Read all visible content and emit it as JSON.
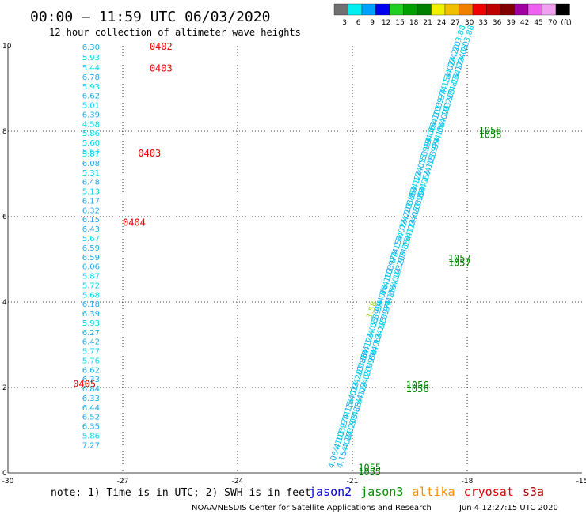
{
  "header": {
    "title": "00:00 – 11:59 UTC 06/03/2020",
    "subtitle": "12 hour collection of altimeter wave heights"
  },
  "legend": {
    "labels": [
      "3",
      "6",
      "9",
      "12",
      "15",
      "18",
      "21",
      "24",
      "27",
      "30",
      "33",
      "36",
      "39",
      "42",
      "45",
      "70",
      "(ft)"
    ],
    "colors": [
      "#707070",
      "#00f0f0",
      "#00a0ff",
      "#0000f0",
      "#20d020",
      "#00a000",
      "#008000",
      "#f0f000",
      "#f0c000",
      "#f08000",
      "#f00000",
      "#c00000",
      "#800000",
      "#a000a0",
      "#f060f0",
      "#f0a0f0",
      "#000000"
    ]
  },
  "footer": {
    "note": "note: 1) Time is in UTC; 2) SWH is in feet",
    "satellites": [
      {
        "name": "jason2",
        "color": "#0000cc"
      },
      {
        "name": "jason3",
        "color": "#009000"
      },
      {
        "name": "altika",
        "color": "#ff8c00"
      },
      {
        "name": "cryosat",
        "color": "#dd0000"
      },
      {
        "name": "s3a",
        "color": "#aa0000"
      }
    ],
    "credit": "NOAA/NESDIS Center for Satellite Applications and Research",
    "timestamp": "Jun  4 12:27:15 UTC 2020"
  },
  "chart_data": {
    "type": "scatter",
    "title": "",
    "xlabel": "",
    "ylabel": "",
    "xlim": [
      -30,
      -15
    ],
    "ylim": [
      0,
      10
    ],
    "x_ticks": [
      -30,
      -27,
      -24,
      -21,
      -18,
      -15
    ],
    "y_ticks": [
      0,
      2,
      4,
      6,
      8,
      10
    ],
    "grid": true,
    "grid_style": "dotted",
    "legend_position": "top-right",
    "left_track": {
      "x": -27.6,
      "heights": [
        {
          "y": 9.98,
          "v": "6.30"
        },
        {
          "y": 9.74,
          "v": "5.93"
        },
        {
          "y": 9.5,
          "v": "5.44"
        },
        {
          "y": 9.28,
          "v": "6.78"
        },
        {
          "y": 9.06,
          "v": "5.93"
        },
        {
          "y": 8.84,
          "v": "6.62"
        },
        {
          "y": 8.62,
          "v": "5.01"
        },
        {
          "y": 8.4,
          "v": "6.39"
        },
        {
          "y": 8.18,
          "v": "4.58"
        },
        {
          "y": 7.96,
          "v": "5.86"
        },
        {
          "y": 7.74,
          "v": "5.60"
        },
        {
          "y": 7.54,
          "v": "5.67"
        },
        {
          "y": 7.48,
          "v": "5.87"
        },
        {
          "y": 7.26,
          "v": "6.08"
        },
        {
          "y": 7.04,
          "v": "5.31"
        },
        {
          "y": 6.82,
          "v": "6.48"
        },
        {
          "y": 6.6,
          "v": "5.13"
        },
        {
          "y": 6.38,
          "v": "6.17"
        },
        {
          "y": 6.16,
          "v": "6.32"
        },
        {
          "y": 5.94,
          "v": "6.15"
        },
        {
          "y": 5.72,
          "v": "6.43"
        },
        {
          "y": 5.5,
          "v": "5.67"
        },
        {
          "y": 5.28,
          "v": "6.59"
        },
        {
          "y": 5.06,
          "v": "6.59"
        },
        {
          "y": 4.84,
          "v": "6.06"
        },
        {
          "y": 4.62,
          "v": "5.87"
        },
        {
          "y": 4.4,
          "v": "5.72"
        },
        {
          "y": 4.18,
          "v": "5.68"
        },
        {
          "y": 3.96,
          "v": "6.18"
        },
        {
          "y": 3.74,
          "v": "6.39"
        },
        {
          "y": 3.52,
          "v": "5.93"
        },
        {
          "y": 3.3,
          "v": "6.27"
        },
        {
          "y": 3.08,
          "v": "6.42"
        },
        {
          "y": 2.86,
          "v": "5.77"
        },
        {
          "y": 2.64,
          "v": "5.76"
        },
        {
          "y": 2.42,
          "v": "6.62"
        },
        {
          "y": 2.2,
          "v": "6.33"
        },
        {
          "y": 1.98,
          "v": "6.84"
        },
        {
          "y": 1.76,
          "v": "6.33"
        },
        {
          "y": 1.54,
          "v": "6.44"
        },
        {
          "y": 1.32,
          "v": "6.52"
        },
        {
          "y": 1.1,
          "v": "6.35"
        },
        {
          "y": 0.88,
          "v": "5.86"
        },
        {
          "y": 0.66,
          "v": "7.27"
        }
      ],
      "times": [
        {
          "x": -26.3,
          "y": 9.98,
          "label": "0402"
        },
        {
          "x": -26.3,
          "y": 9.47,
          "label": "0403"
        },
        {
          "x": -26.6,
          "y": 7.48,
          "label": "0403"
        },
        {
          "x": -27.0,
          "y": 5.86,
          "label": "0404"
        },
        {
          "x": -28.3,
          "y": 2.08,
          "label": "0405"
        }
      ]
    },
    "right_tracks": {
      "start": [
        -21.5,
        0.1
      ],
      "end": [
        -18.2,
        10.0
      ],
      "offset_x": 0.22,
      "sample_labels": [
        "4.06",
        "4.10",
        "3.97",
        "4.15",
        "4.02",
        "4.20",
        "3.88",
        "4.12",
        "4.05",
        "3.99"
      ],
      "highlight": {
        "x": -20.5,
        "y": 3.6,
        "v": "3.58"
      },
      "times": [
        {
          "x": -20.85,
          "y": 0.12,
          "label": "1055"
        },
        {
          "x": -20.85,
          "y": 0.02,
          "label": "1055"
        },
        {
          "x": -19.6,
          "y": 2.06,
          "label": "1056"
        },
        {
          "x": -19.6,
          "y": 1.96,
          "label": "1056"
        },
        {
          "x": -18.5,
          "y": 5.02,
          "label": "1057"
        },
        {
          "x": -18.5,
          "y": 4.92,
          "label": "1057"
        },
        {
          "x": -17.7,
          "y": 8.02,
          "label": "1058"
        },
        {
          "x": -17.7,
          "y": 7.92,
          "label": "1058"
        }
      ]
    }
  }
}
